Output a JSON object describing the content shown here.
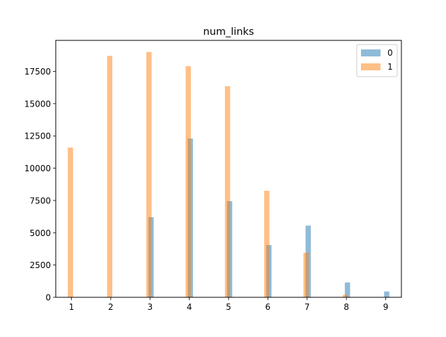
{
  "chart_data": {
    "type": "bar",
    "title": "num_links",
    "xlabel": "",
    "ylabel": "",
    "x_ticks": [
      1,
      2,
      3,
      4,
      5,
      6,
      7,
      8,
      9
    ],
    "y_ticks": [
      0,
      2500,
      5000,
      7500,
      10000,
      12500,
      15000,
      17500
    ],
    "xlim": [
      0.6,
      9.4
    ],
    "ylim": [
      0,
      19900
    ],
    "grid": false,
    "legend_position": "top-right",
    "series": [
      {
        "name": "0",
        "color": "#1f77b4",
        "opacity": 0.5,
        "x": [
          3,
          4,
          5,
          6,
          7,
          8,
          9
        ],
        "values": [
          6200,
          12300,
          7450,
          4050,
          5550,
          1150,
          450
        ]
      },
      {
        "name": "1",
        "color": "#ff7f0e",
        "opacity": 0.5,
        "x": [
          1,
          2,
          3,
          4,
          5,
          6,
          7,
          8
        ],
        "values": [
          11600,
          18700,
          19000,
          17900,
          16350,
          8250,
          3450,
          200
        ]
      }
    ]
  }
}
